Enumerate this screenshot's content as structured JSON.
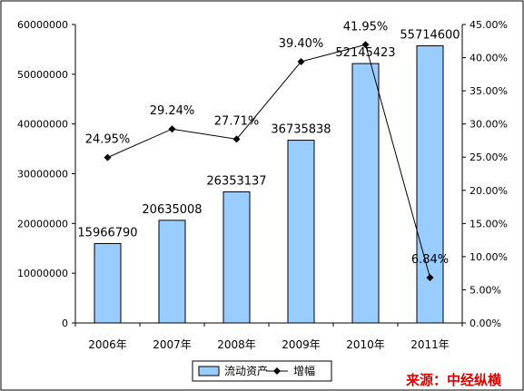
{
  "chart_data": {
    "type": "bar+line",
    "categories": [
      "2006年",
      "2007年",
      "2008年",
      "2009年",
      "2010年",
      "2011年"
    ],
    "series": [
      {
        "name": "流动资产",
        "type": "bar",
        "axis": "left",
        "values": [
          15966790,
          20635008,
          26353137,
          36735838,
          52145423,
          55714600
        ],
        "labels": [
          "15966790",
          "20635008",
          "26353137",
          "36735838",
          "52145423",
          "55714600"
        ],
        "color": "#99ccff"
      },
      {
        "name": "增幅",
        "type": "line",
        "axis": "right",
        "values": [
          24.95,
          29.24,
          27.71,
          39.4,
          41.95,
          6.84
        ],
        "labels": [
          "24.95%",
          "29.24%",
          "27.71%",
          "39.40%",
          "41.95%",
          "6.84%"
        ],
        "color": "#000000"
      }
    ],
    "ylim_left": [
      0,
      60000000
    ],
    "yticks_left": [
      "0",
      "10000000",
      "20000000",
      "30000000",
      "40000000",
      "50000000",
      "60000000"
    ],
    "ylim_right": [
      0,
      45
    ],
    "yticks_right": [
      "0.00%",
      "5.00%",
      "10.00%",
      "15.00%",
      "20.00%",
      "25.00%",
      "30.00%",
      "35.00%",
      "40.00%",
      "45.00%"
    ],
    "legend_position": "bottom",
    "grid": false,
    "source": "来源：中经纵横"
  }
}
